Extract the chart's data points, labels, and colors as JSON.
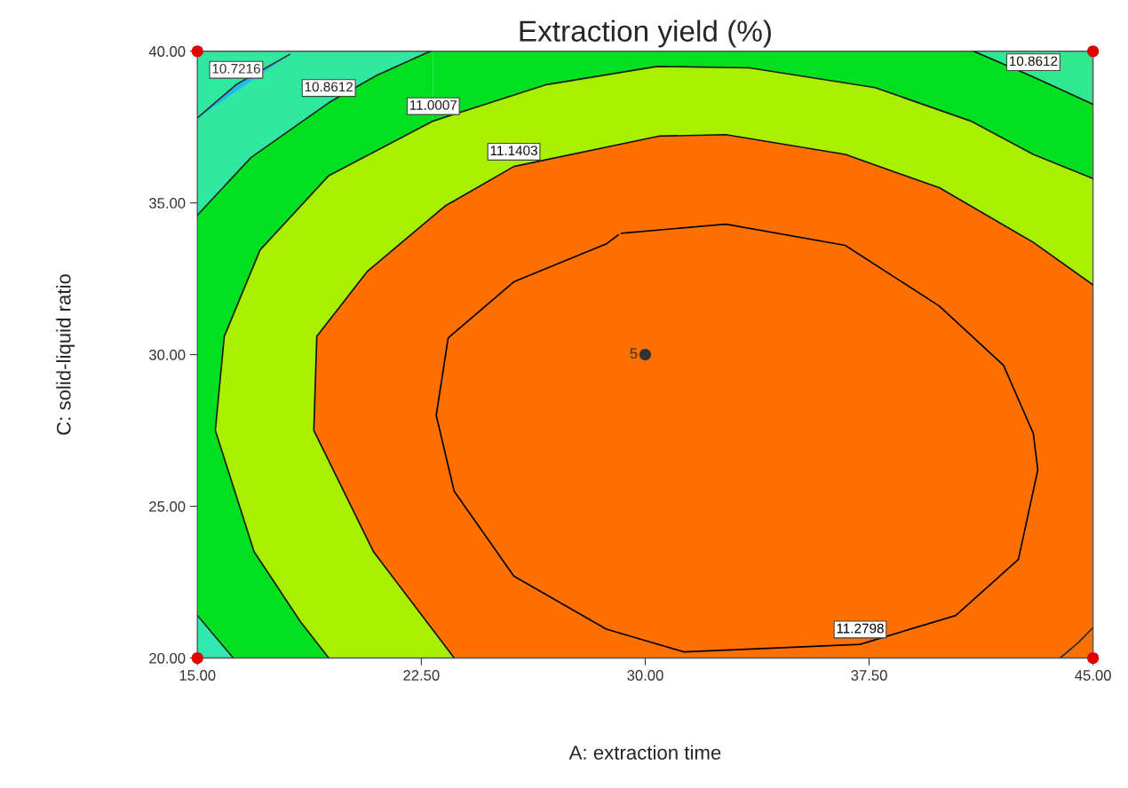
{
  "chart_data": {
    "type": "line",
    "title": "Extraction yield (%)",
    "xlabel": "A: extraction time",
    "ylabel": "C: solid-liquid ratio",
    "xlim": [
      15,
      45
    ],
    "ylim": [
      20,
      40
    ],
    "xticks": [
      {
        "value": 15,
        "label": "15.00"
      },
      {
        "value": 22.5,
        "label": "22.50"
      },
      {
        "value": 30,
        "label": "30.00"
      },
      {
        "value": 37.5,
        "label": "37.50"
      },
      {
        "value": 45,
        "label": "45.00"
      }
    ],
    "yticks": [
      {
        "value": 20,
        "label": "20.00"
      },
      {
        "value": 25,
        "label": "25.00"
      },
      {
        "value": 30,
        "label": "30.00"
      },
      {
        "value": 35,
        "label": "35.00"
      },
      {
        "value": 40,
        "label": "40.00"
      }
    ],
    "grid": false,
    "legend": false,
    "marker": "none",
    "line_style": "solid",
    "series": [
      {
        "name": "11.0007",
        "color": "#1a1a1a",
        "x": [
          19.4,
          18.45,
          16.9,
          15.6,
          15.9,
          17.1,
          19.4,
          22.9,
          26.7,
          30.4,
          33.5,
          37.7,
          40.9,
          43.0,
          45
        ],
        "values": [
          20,
          21.2,
          23.5,
          27.5,
          30.6,
          33.45,
          35.9,
          37.7,
          38.9,
          39.5,
          39.45,
          38.8,
          37.7,
          36.6,
          35.8
        ]
      },
      {
        "color": "#2a2a2a",
        "x": [
          45,
          44.5,
          43.9
        ],
        "values": [
          21.0,
          20.5,
          20
        ]
      },
      {
        "name": "11.1403",
        "color": "#101010",
        "x": [
          23.6,
          20.9,
          18.9,
          19.0,
          20.7,
          23.3,
          25.6,
          30.45,
          32.7,
          36.7,
          39.85,
          43.0,
          45
        ],
        "values": [
          20,
          23.5,
          27.5,
          30.6,
          32.75,
          34.9,
          36.2,
          37.2,
          37.25,
          36.6,
          35.5,
          33.7,
          32.3
        ]
      },
      {
        "name": "11.2798",
        "color": "#000000",
        "x": [
          29.2,
          32.7,
          36.7,
          39.85,
          42.0,
          43.0,
          43.15,
          42.5,
          40.4,
          37.2,
          31.3,
          28.7,
          25.6,
          23.6,
          23.0,
          23.4,
          25.6,
          28.7,
          29.1
        ],
        "values": [
          34.0,
          34.3,
          33.6,
          31.6,
          29.65,
          27.4,
          26.2,
          23.25,
          21.4,
          20.45,
          20.2,
          20.95,
          22.7,
          25.5,
          28.0,
          30.55,
          32.4,
          33.65,
          33.95
        ]
      },
      {
        "name": "10.8612",
        "color": "#222222",
        "x": [
          15,
          16.8,
          19.4,
          21.0,
          22.8
        ],
        "values": [
          34.6,
          36.5,
          38.3,
          39.2,
          40
        ]
      },
      {
        "name": "10.7216",
        "color": "#303030",
        "x": [
          15,
          16.3,
          18.1
        ],
        "values": [
          37.8,
          38.9,
          39.9
        ]
      },
      {
        "name": "10.8612",
        "color": "#141414",
        "x": [
          41.0,
          43.0,
          45
        ],
        "values": [
          40,
          39.15,
          38.25
        ]
      },
      {
        "color": "#262626",
        "x": [
          15,
          15.6,
          16.2
        ],
        "values": [
          21.4,
          20.7,
          20
        ]
      },
      {
        "type": "scatter",
        "marker": "circle",
        "x": [
          15,
          15,
          45,
          45,
          30
        ],
        "values": [
          20,
          40,
          20,
          40,
          30
        ],
        "colors": [
          "#e00000",
          "#e00000",
          "#e00000",
          "#e00000",
          "#333333"
        ]
      }
    ],
    "annotations": [
      {
        "text": "5",
        "x": 30,
        "y": 30
      }
    ]
  }
}
